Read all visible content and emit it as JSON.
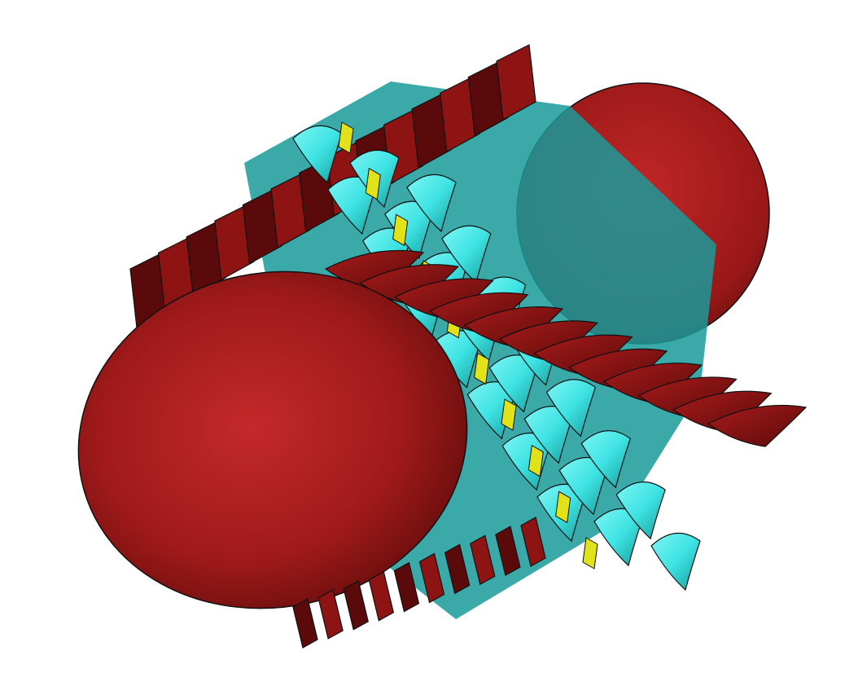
{
  "scene": {
    "colors": {
      "background": "#ffffff",
      "hub": "#a81d1d",
      "hub_highlight": "#c8302d",
      "hub_shadow": "#5e0b0b",
      "rotor_blade": "#8e1414",
      "rotor_blade_dark": "#5a0a0a",
      "stator_vane": "#3fe3e3",
      "stator_vane_shadow": "#128f8f",
      "spacer": "#e2e21a",
      "outline": "#111111"
    },
    "counts": {
      "rotor_blades": 26,
      "stator_vanes": 24,
      "spacers": 10
    }
  }
}
